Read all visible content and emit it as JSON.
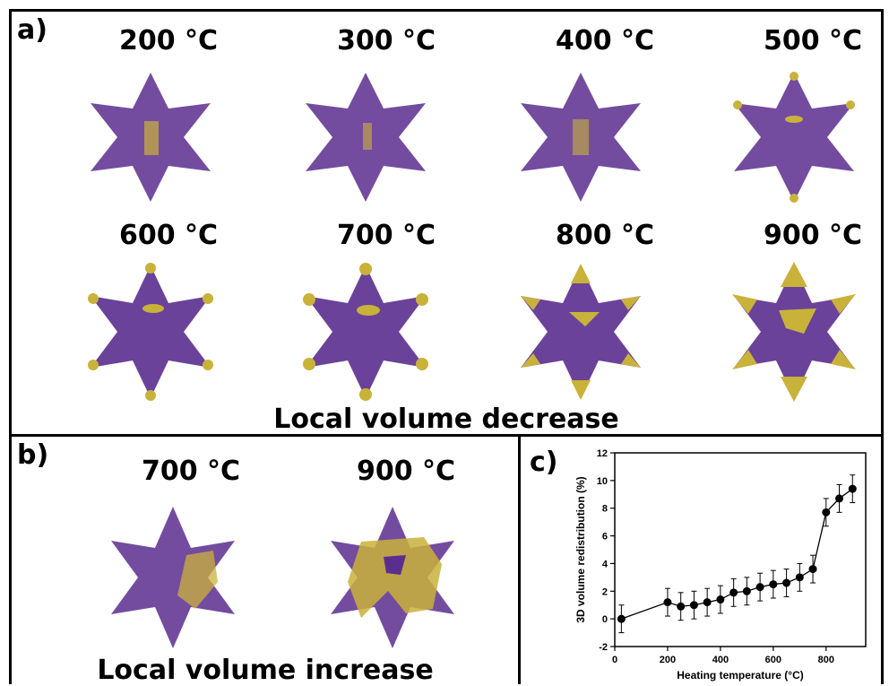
{
  "panel_a": {
    "label": "a)",
    "temperatures_row1": [
      "200 °C",
      "300 °C",
      "400 °C",
      "500 °C"
    ],
    "temperatures_row2": [
      "600 °C",
      "700 °C",
      "800 °C",
      "900 °C"
    ],
    "caption": "Local volume decrease"
  },
  "panel_b": {
    "label": "b)",
    "temperatures": [
      "700 °C",
      "900 °C"
    ],
    "caption": "Local volume increase"
  },
  "panel_c": {
    "label": "c)"
  },
  "colors": {
    "particle": "#5b2d8e",
    "highlight": "#c9b23a",
    "frame": "#000000"
  },
  "chart_data": {
    "type": "line",
    "xlabel": "Heating temperature (°C)",
    "ylabel": "3D volume redistribution (%)",
    "xlim": [
      0,
      950
    ],
    "ylim": [
      -2,
      12
    ],
    "xticks": [
      0,
      200,
      400,
      600,
      800
    ],
    "yticks": [
      -2,
      0,
      2,
      4,
      6,
      8,
      10,
      12
    ],
    "x": [
      25,
      200,
      250,
      300,
      350,
      400,
      450,
      500,
      550,
      600,
      650,
      700,
      750,
      800,
      850,
      900
    ],
    "y": [
      0.0,
      1.2,
      0.9,
      1.0,
      1.2,
      1.4,
      1.9,
      2.0,
      2.3,
      2.5,
      2.6,
      3.0,
      3.6,
      7.7,
      8.7,
      9.4
    ],
    "error": [
      1.0,
      1.0,
      1.0,
      1.0,
      1.0,
      1.0,
      1.0,
      1.0,
      1.0,
      1.0,
      1.0,
      1.0,
      1.0,
      1.0,
      1.0,
      1.0
    ]
  }
}
